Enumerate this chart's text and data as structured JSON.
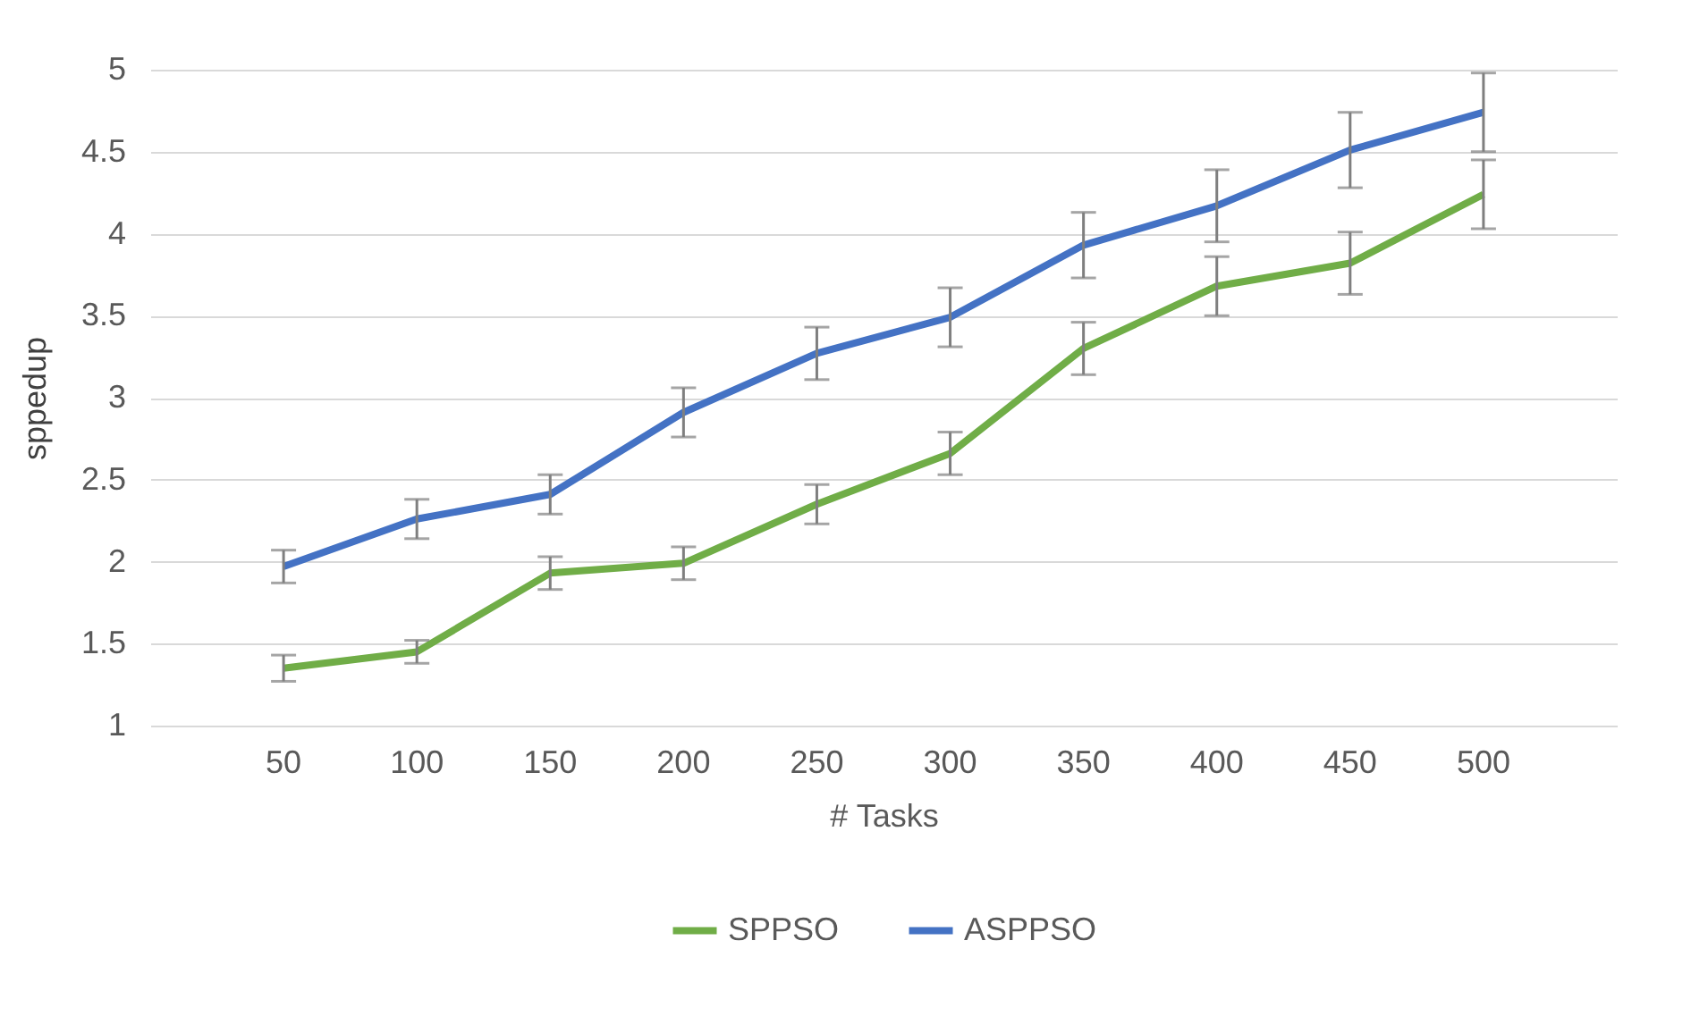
{
  "chart_data": {
    "type": "line",
    "xlabel": "# Tasks",
    "ylabel": "sppedup",
    "categories": [
      "50",
      "100",
      "150",
      "200",
      "250",
      "300",
      "350",
      "400",
      "450",
      "500"
    ],
    "series": [
      {
        "name": "SPPSO",
        "color": "#70ad47",
        "values": [
          1.35,
          1.45,
          1.93,
          1.99,
          2.35,
          2.66,
          3.3,
          3.68,
          3.82,
          4.24
        ],
        "errors": [
          0.08,
          0.07,
          0.1,
          0.1,
          0.12,
          0.13,
          0.16,
          0.18,
          0.19,
          0.21
        ]
      },
      {
        "name": "ASPPSO",
        "color": "#4472c4",
        "values": [
          1.97,
          2.26,
          2.41,
          2.91,
          3.27,
          3.49,
          3.93,
          4.17,
          4.51,
          4.74
        ],
        "errors": [
          0.1,
          0.12,
          0.12,
          0.15,
          0.16,
          0.18,
          0.2,
          0.22,
          0.23,
          0.24
        ]
      }
    ],
    "ylim": [
      1,
      5
    ],
    "yticks": [
      1,
      1.5,
      2,
      2.5,
      3,
      3.5,
      4,
      4.5,
      5
    ],
    "grid": "y",
    "legend": "bottom",
    "marker": "none",
    "line_style": "solid"
  }
}
